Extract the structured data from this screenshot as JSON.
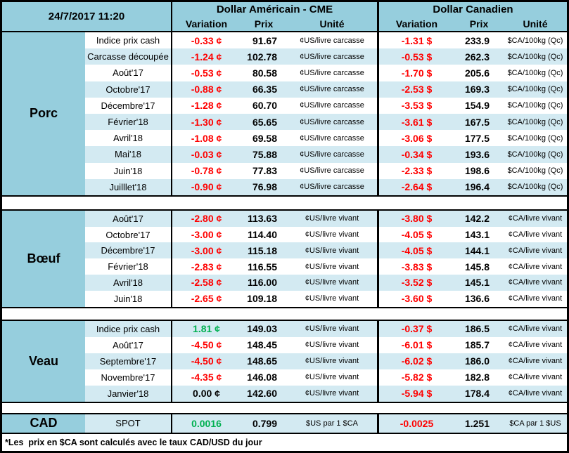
{
  "header": {
    "timestamp": "24/7/2017 11:20",
    "usd_group_title": "Dollar Américain - CME",
    "cad_group_title": "Dollar Canadien",
    "col_variation": "Variation",
    "col_prix": "Prix",
    "col_unite": "Unité"
  },
  "colors": {
    "accent": "#96CEDD",
    "stripe": "#D3EAF2",
    "negative": "#FF0000",
    "positive": "#00B050",
    "ink": "#000000"
  },
  "sections": [
    {
      "id": "porc",
      "category": "Porc",
      "stripe_start": "white",
      "rows": [
        {
          "label": "Indice prix cash",
          "us_variation": "-0.33 ¢",
          "us_prix": "91.67",
          "us_unite": "¢US/livre carcasse",
          "cad_variation": "-1.31 $",
          "cad_prix": "233.9",
          "cad_unite": "$CA/100kg (Qc)"
        },
        {
          "label": "Carcasse découpée",
          "us_variation": "-1.24 ¢",
          "us_prix": "102.78",
          "us_unite": "¢US/livre carcasse",
          "cad_variation": "-0.53 $",
          "cad_prix": "262.3",
          "cad_unite": "$CA/100kg (Qc)"
        },
        {
          "label": "Août'17",
          "us_variation": "-0.53 ¢",
          "us_prix": "80.58",
          "us_unite": "¢US/livre carcasse",
          "cad_variation": "-1.70 $",
          "cad_prix": "205.6",
          "cad_unite": "$CA/100kg (Qc)"
        },
        {
          "label": "Octobre'17",
          "us_variation": "-0.88 ¢",
          "us_prix": "66.35",
          "us_unite": "¢US/livre carcasse",
          "cad_variation": "-2.53 $",
          "cad_prix": "169.3",
          "cad_unite": "$CA/100kg (Qc)"
        },
        {
          "label": "Décembre'17",
          "us_variation": "-1.28 ¢",
          "us_prix": "60.70",
          "us_unite": "¢US/livre carcasse",
          "cad_variation": "-3.53 $",
          "cad_prix": "154.9",
          "cad_unite": "$CA/100kg (Qc)"
        },
        {
          "label": "Février'18",
          "us_variation": "-1.30 ¢",
          "us_prix": "65.65",
          "us_unite": "¢US/livre carcasse",
          "cad_variation": "-3.61 $",
          "cad_prix": "167.5",
          "cad_unite": "$CA/100kg (Qc)"
        },
        {
          "label": "Avril'18",
          "us_variation": "-1.08 ¢",
          "us_prix": "69.58",
          "us_unite": "¢US/livre carcasse",
          "cad_variation": "-3.06 $",
          "cad_prix": "177.5",
          "cad_unite": "$CA/100kg (Qc)"
        },
        {
          "label": "Mai'18",
          "us_variation": "-0.03 ¢",
          "us_prix": "75.88",
          "us_unite": "¢US/livre carcasse",
          "cad_variation": "-0.34 $",
          "cad_prix": "193.6",
          "cad_unite": "$CA/100kg (Qc)"
        },
        {
          "label": "Juin'18",
          "us_variation": "-0.78 ¢",
          "us_prix": "77.83",
          "us_unite": "¢US/livre carcasse",
          "cad_variation": "-2.33 $",
          "cad_prix": "198.6",
          "cad_unite": "$CA/100kg (Qc)"
        },
        {
          "label": "Juilllet'18",
          "us_variation": "-0.90 ¢",
          "us_prix": "76.98",
          "us_unite": "¢US/livre carcasse",
          "cad_variation": "-2.64 $",
          "cad_prix": "196.4",
          "cad_unite": "$CA/100kg (Qc)"
        }
      ]
    },
    {
      "id": "boeuf",
      "category": "Bœuf",
      "stripe_start": "blue",
      "rows": [
        {
          "label": "Août'17",
          "us_variation": "-2.80 ¢",
          "us_prix": "113.63",
          "us_unite": "¢US/livre vivant",
          "cad_variation": "-3.80 $",
          "cad_prix": "142.2",
          "cad_unite": "¢CA/livre vivant"
        },
        {
          "label": "Octobre'17",
          "us_variation": "-3.00 ¢",
          "us_prix": "114.40",
          "us_unite": "¢US/livre vivant",
          "cad_variation": "-4.05 $",
          "cad_prix": "143.1",
          "cad_unite": "¢CA/livre vivant"
        },
        {
          "label": "Décembre'17",
          "us_variation": "-3.00 ¢",
          "us_prix": "115.18",
          "us_unite": "¢US/livre vivant",
          "cad_variation": "-4.05 $",
          "cad_prix": "144.1",
          "cad_unite": "¢CA/livre vivant"
        },
        {
          "label": "Février'18",
          "us_variation": "-2.83 ¢",
          "us_prix": "116.55",
          "us_unite": "¢US/livre vivant",
          "cad_variation": "-3.83 $",
          "cad_prix": "145.8",
          "cad_unite": "¢CA/livre vivant"
        },
        {
          "label": "Avril'18",
          "us_variation": "-2.58 ¢",
          "us_prix": "116.00",
          "us_unite": "¢US/livre vivant",
          "cad_variation": "-3.52 $",
          "cad_prix": "145.1",
          "cad_unite": "¢CA/livre vivant"
        },
        {
          "label": "Juin'18",
          "us_variation": "-2.65 ¢",
          "us_prix": "109.18",
          "us_unite": "¢US/livre vivant",
          "cad_variation": "-3.60 $",
          "cad_prix": "136.6",
          "cad_unite": "¢CA/livre vivant"
        }
      ]
    },
    {
      "id": "veau",
      "category": "Veau",
      "stripe_start": "blue",
      "rows": [
        {
          "label": "Indice prix cash",
          "us_variation": "1.81 ¢",
          "us_prix": "149.03",
          "us_unite": "¢US/livre vivant",
          "cad_variation": "-0.37 $",
          "cad_prix": "186.5",
          "cad_unite": "¢CA/livre vivant"
        },
        {
          "label": "Août'17",
          "us_variation": "-4.50 ¢",
          "us_prix": "148.45",
          "us_unite": "¢US/livre vivant",
          "cad_variation": "-6.01 $",
          "cad_prix": "185.7",
          "cad_unite": "¢CA/livre vivant"
        },
        {
          "label": "Septembre'17",
          "us_variation": "-4.50 ¢",
          "us_prix": "148.65",
          "us_unite": "¢US/livre vivant",
          "cad_variation": "-6.02 $",
          "cad_prix": "186.0",
          "cad_unite": "¢CA/livre vivant"
        },
        {
          "label": "Novembre'17",
          "us_variation": "-4.35 ¢",
          "us_prix": "146.08",
          "us_unite": "¢US/livre vivant",
          "cad_variation": "-5.82 $",
          "cad_prix": "182.8",
          "cad_unite": "¢CA/livre vivant"
        },
        {
          "label": "Janvier'18",
          "us_variation": "0.00 ¢",
          "us_prix": "142.60",
          "us_unite": "¢US/livre vivant",
          "cad_variation": "-5.94 $",
          "cad_prix": "178.4",
          "cad_unite": "¢CA/livre vivant"
        }
      ]
    },
    {
      "id": "cad",
      "category": "CAD",
      "stripe_start": "blue",
      "rows": [
        {
          "label": "SPOT",
          "us_variation": "0.0016",
          "us_prix": "0.799",
          "us_unite": "$US par 1 $CA",
          "cad_variation": "-0.0025",
          "cad_prix": "1.251",
          "cad_unite": "$CA par 1 $US"
        }
      ]
    }
  ],
  "footnote": "*Les  prix en $CA sont calculés avec le taux CAD/USD du jour"
}
